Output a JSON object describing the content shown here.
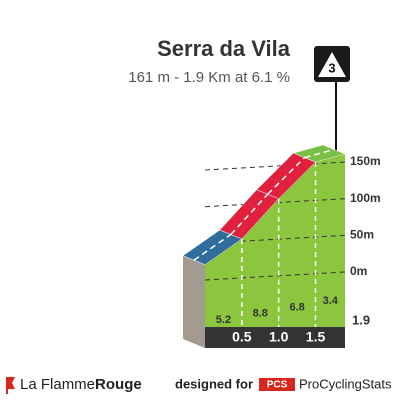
{
  "chart_data": {
    "type": "climb-profile",
    "title": "Serra da Vila",
    "subtitle": "161 m - 1.9 Km at 6.1 %",
    "category": "3",
    "profile": {
      "x": [
        0,
        0.5,
        1,
        1.5,
        1.9
      ],
      "y": [
        10,
        45,
        100,
        150,
        161
      ]
    },
    "segments": {
      "values": [
        5.2,
        8.8,
        6.8,
        3.4
      ],
      "colors": [
        "#2f6e9c",
        "#e0203c",
        "#e0203c",
        "#77c043"
      ]
    },
    "fill_color": "#8cc63f",
    "xlim": [
      0,
      1.9
    ],
    "xticks": [
      0.5,
      {
        "value": 1,
        "label": "1.0"
      },
      1.5
    ],
    "ylim": [
      0,
      161
    ],
    "yticks": [
      {
        "value": 150,
        "label": "150m"
      },
      {
        "value": 100,
        "label": "100m"
      },
      {
        "value": 50,
        "label": "50m"
      },
      {
        "value": 0,
        "label": "0m"
      }
    ]
  },
  "footer": {
    "brand_light": "La Flamme",
    "brand_bold": "Rouge",
    "designed_for": "designed for",
    "pcs_logo": "PCS",
    "pcs_name": "ProCyclingStats"
  }
}
